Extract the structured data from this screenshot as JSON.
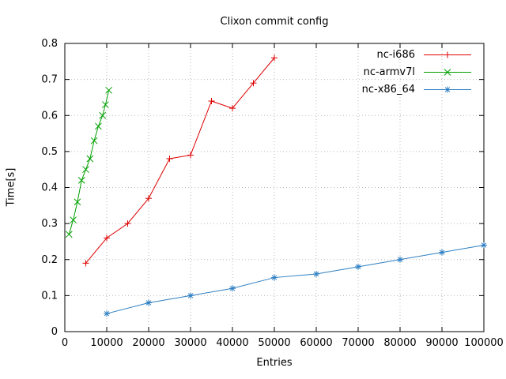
{
  "chart_data": {
    "type": "line",
    "title": "Clixon commit config",
    "xlabel": "Entries",
    "ylabel": "Time[s]",
    "xlim": [
      0,
      100000
    ],
    "ylim": [
      0,
      0.8
    ],
    "xticks": [
      0,
      10000,
      20000,
      30000,
      40000,
      50000,
      60000,
      70000,
      80000,
      90000,
      100000
    ],
    "yticks": [
      0,
      0.1,
      0.2,
      0.3,
      0.4,
      0.5,
      0.6,
      0.7,
      0.8
    ],
    "grid": true,
    "grid_color": "#b8b8b8",
    "border_color": "#000000",
    "background_color": "#ffffff",
    "legend_position": "top-right",
    "series": [
      {
        "name": "nc-i686",
        "color": "#dd0000",
        "marker": "plus",
        "points": [
          [
            5000,
            0.19
          ],
          [
            10000,
            0.26
          ],
          [
            15000,
            0.3
          ],
          [
            20000,
            0.37
          ],
          [
            25000,
            0.48
          ],
          [
            30000,
            0.49
          ],
          [
            35000,
            0.64
          ],
          [
            40000,
            0.62
          ],
          [
            45000,
            0.69
          ],
          [
            50000,
            0.76
          ]
        ]
      },
      {
        "name": "nc-armv7l",
        "color": "#00a000",
        "marker": "x",
        "points": [
          [
            1000,
            0.27
          ],
          [
            2000,
            0.31
          ],
          [
            3000,
            0.36
          ],
          [
            4000,
            0.42
          ],
          [
            5000,
            0.45
          ],
          [
            6000,
            0.48
          ],
          [
            7000,
            0.53
          ],
          [
            8000,
            0.57
          ],
          [
            9000,
            0.6
          ],
          [
            9700,
            0.63
          ],
          [
            10500,
            0.67
          ]
        ]
      },
      {
        "name": "nc-x86_64",
        "color": "#2e7fc2",
        "marker": "asterisk",
        "points": [
          [
            10000,
            0.05
          ],
          [
            20000,
            0.08
          ],
          [
            30000,
            0.1
          ],
          [
            40000,
            0.12
          ],
          [
            50000,
            0.15
          ],
          [
            60000,
            0.16
          ],
          [
            70000,
            0.18
          ],
          [
            80000,
            0.2
          ],
          [
            90000,
            0.22
          ],
          [
            100000,
            0.24
          ]
        ]
      }
    ]
  }
}
